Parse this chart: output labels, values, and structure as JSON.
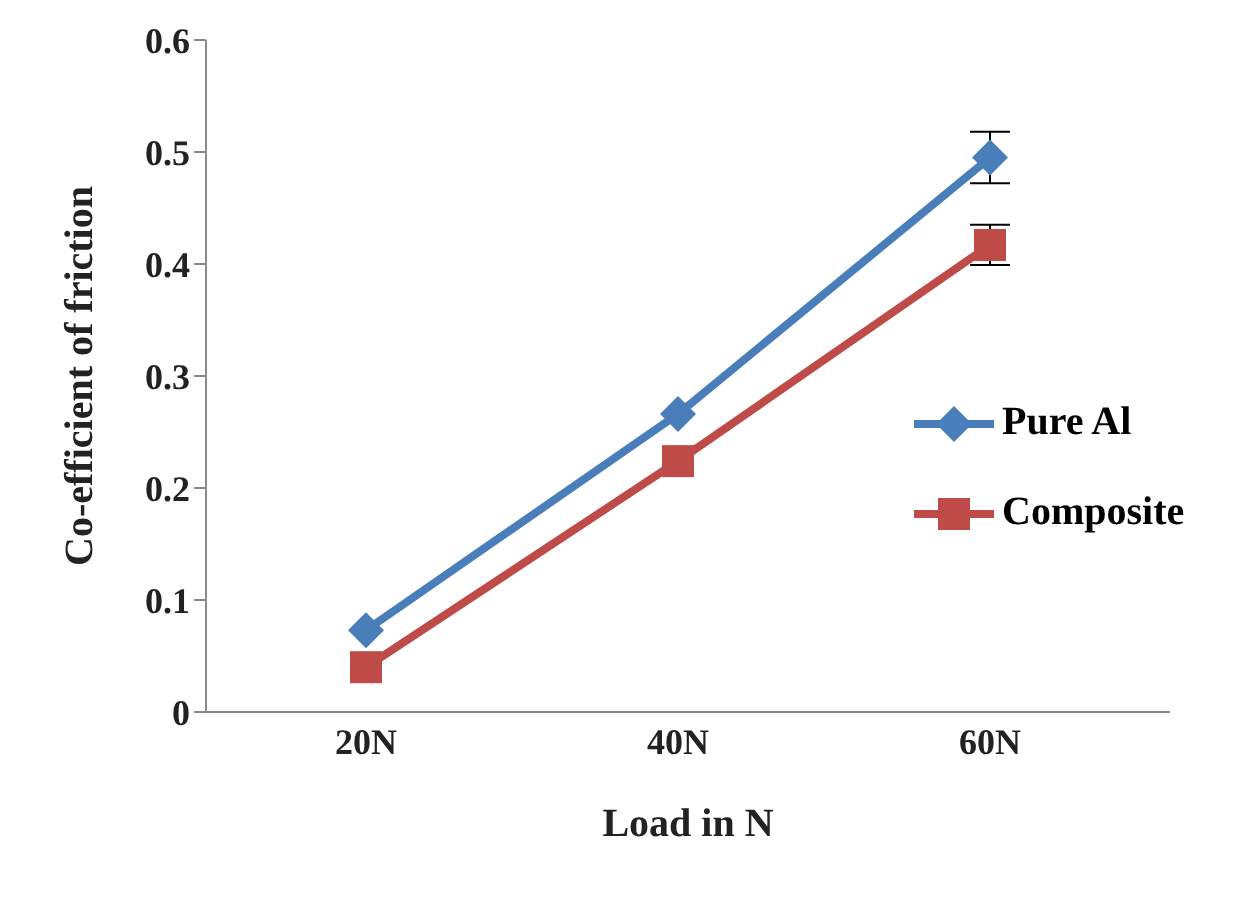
{
  "chart_data": {
    "type": "line",
    "xlabel": "Load in N",
    "ylabel": "Co-efficient of friction",
    "categories": [
      "20N",
      "40N",
      "60N"
    ],
    "series": [
      {
        "name": "Pure Al",
        "color": "#4a7ebb",
        "marker": "diamond",
        "values": [
          0.073,
          0.266,
          0.495
        ],
        "errors": [
          null,
          null,
          0.023
        ]
      },
      {
        "name": "Composite",
        "color": "#be4b48",
        "marker": "square",
        "values": [
          0.04,
          0.224,
          0.417
        ],
        "errors": [
          null,
          null,
          0.018
        ]
      }
    ],
    "ylim": [
      0,
      0.6
    ],
    "yticks": [
      0,
      0.1,
      0.2,
      0.3,
      0.4,
      0.5,
      0.6
    ],
    "grid": false,
    "legend": "right"
  }
}
